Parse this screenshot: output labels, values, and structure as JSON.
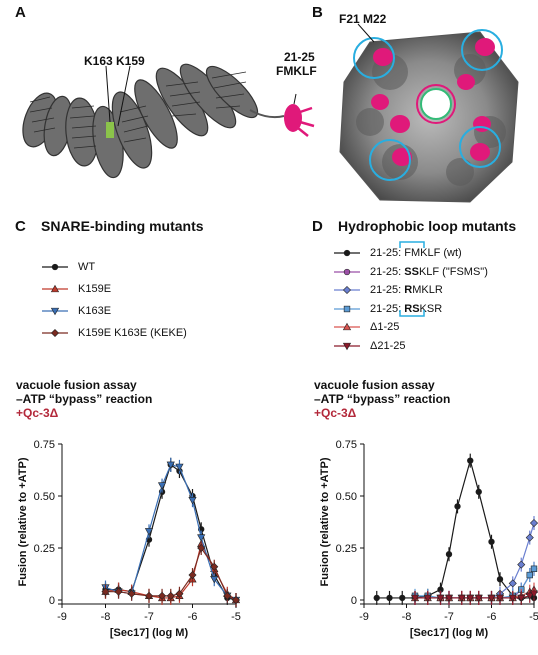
{
  "panels": {
    "a": {
      "letter": "A",
      "labels": {
        "k163": "K163",
        "k159": "K159",
        "loop_range": "21-25",
        "loop_seq": "FMKLF"
      }
    },
    "b": {
      "letter": "B",
      "labels": {
        "residues": "F21 M22"
      }
    },
    "c": {
      "letter": "C",
      "title": "SNARE-binding mutants",
      "assay_title_1": "vacuole fusion assay",
      "assay_title_2": "–ATP “bypass” reaction",
      "assay_title_3": "+Qc-3Δ"
    },
    "d": {
      "letter": "D",
      "title": "Hydrophobic loop mutants",
      "assay_title_1": "vacuole fusion assay",
      "assay_title_2": "–ATP “bypass” reaction",
      "assay_title_3": "+Qc-3Δ"
    }
  },
  "colors": {
    "wt": "#1a1a1a",
    "k159e": "#c0392b",
    "k163e": "#3a6fb5",
    "keke": "#7a2a20",
    "fsms": "#9b4fa6",
    "rmklr": "#6a7fd0",
    "rsksr": "#5b9bd5",
    "d1_25": "#d9534f",
    "d21_25": "#8b1a2a",
    "magenta": "#e0197a",
    "cyan": "#29aee0"
  },
  "chart_data": [
    {
      "type": "line",
      "panel": "C",
      "title": "vacuole fusion assay –ATP “bypass” reaction +Qc-3Δ",
      "xlabel": "[Sec17] (log M)",
      "ylabel": "Fusion (relative to +ATP)",
      "xlim": [
        -9,
        -5
      ],
      "ylim": [
        0,
        0.75
      ],
      "x_ticks": [
        "-9",
        "-8",
        "-7",
        "-6",
        "-5"
      ],
      "y_ticks": [
        "0",
        "0.25",
        "0.50",
        "0.75"
      ],
      "series": [
        {
          "name": "WT",
          "color": "#1a1a1a",
          "marker": "circle",
          "x": [
            -8.0,
            -7.7,
            -7.4,
            -7.0,
            -6.7,
            -6.5,
            -6.3,
            -6.0,
            -5.8,
            -5.5,
            -5.2,
            -5.0
          ],
          "y": [
            0.05,
            0.05,
            0.04,
            0.29,
            0.52,
            0.65,
            0.62,
            0.5,
            0.34,
            0.12,
            0.01,
            0.0
          ]
        },
        {
          "name": "K159E",
          "color": "#c0392b",
          "marker": "triangle-up",
          "x": [
            -8.0,
            -7.7,
            -7.4,
            -7.0,
            -6.7,
            -6.5,
            -6.3,
            -6.0,
            -5.8,
            -5.5,
            -5.2,
            -5.0
          ],
          "y": [
            0.04,
            0.05,
            0.04,
            0.02,
            0.01,
            0.01,
            0.02,
            0.1,
            0.27,
            0.15,
            0.03,
            0.0
          ]
        },
        {
          "name": "K163E",
          "color": "#3a6fb5",
          "marker": "triangle-down",
          "x": [
            -8.0,
            -7.7,
            -7.4,
            -7.0,
            -6.7,
            -6.5,
            -6.3,
            -6.0,
            -5.8,
            -5.5,
            -5.2,
            -5.0
          ],
          "y": [
            0.06,
            0.04,
            0.03,
            0.33,
            0.55,
            0.65,
            0.64,
            0.48,
            0.3,
            0.1,
            0.02,
            0.0
          ]
        },
        {
          "name": "K159E K163E (KEKE)",
          "color": "#7a2a20",
          "marker": "diamond",
          "x": [
            -8.0,
            -7.7,
            -7.4,
            -7.0,
            -6.7,
            -6.5,
            -6.3,
            -6.0,
            -5.8,
            -5.5,
            -5.2,
            -5.0
          ],
          "y": [
            0.04,
            0.04,
            0.03,
            0.02,
            0.02,
            0.02,
            0.03,
            0.12,
            0.25,
            0.16,
            0.02,
            0.0
          ]
        }
      ]
    },
    {
      "type": "line",
      "panel": "D",
      "title": "vacuole fusion assay –ATP “bypass” reaction +Qc-3Δ",
      "xlabel": "[Sec17] (log M)",
      "ylabel": "Fusion (relative to +ATP)",
      "xlim": [
        -9,
        -5
      ],
      "ylim": [
        0,
        0.75
      ],
      "x_ticks": [
        "-9",
        "-8",
        "-7",
        "-6",
        "-5"
      ],
      "y_ticks": [
        "0",
        "0.25",
        "0.50",
        "0.75"
      ],
      "series": [
        {
          "name": "21-25: FMKLF (wt)",
          "legend_plain": "21-25: ",
          "legend_bold": "",
          "legend_rest": "FMKLF (wt)",
          "color": "#1a1a1a",
          "marker": "circle",
          "x": [
            -8.7,
            -8.4,
            -8.1,
            -7.8,
            -7.5,
            -7.2,
            -7.0,
            -6.8,
            -6.5,
            -6.3,
            -6.0,
            -5.8,
            -5.5,
            -5.3,
            -5.0
          ],
          "y": [
            0.01,
            0.01,
            0.01,
            0.01,
            0.02,
            0.05,
            0.22,
            0.45,
            0.67,
            0.52,
            0.28,
            0.1,
            0.02,
            0.01,
            0.01
          ]
        },
        {
          "name": "21-25: SSKLF (\"FSMS\")",
          "legend_plain": "21-25: ",
          "legend_bold": "SS",
          "legend_rest": "KLF (\"FSMS\")",
          "color": "#9b4fa6",
          "marker": "circle",
          "x": [
            -7.8,
            -7.5,
            -7.2,
            -7.0,
            -6.7,
            -6.5,
            -6.3,
            -6.0,
            -5.8,
            -5.5,
            -5.3,
            -5.1,
            -5.0
          ],
          "y": [
            0.01,
            0.01,
            0.01,
            0.01,
            0.01,
            0.01,
            0.01,
            0.01,
            0.01,
            0.01,
            0.05,
            0.12,
            0.15
          ]
        },
        {
          "name": "21-25: RMKLR",
          "legend_plain": "21-25: ",
          "legend_bold": "R",
          "legend_rest": "MKLR",
          "color": "#6a7fd0",
          "marker": "diamond",
          "x": [
            -7.8,
            -7.5,
            -7.2,
            -7.0,
            -6.7,
            -6.5,
            -6.3,
            -6.0,
            -5.8,
            -5.5,
            -5.3,
            -5.1,
            -5.0
          ],
          "y": [
            0.01,
            0.01,
            0.01,
            0.01,
            0.01,
            0.01,
            0.01,
            0.01,
            0.03,
            0.08,
            0.17,
            0.3,
            0.37
          ]
        },
        {
          "name": "21-25: RSKSR",
          "legend_plain": "21-25: ",
          "legend_bold": "RS",
          "legend_rest": "KSR",
          "color": "#5b9bd5",
          "marker": "square",
          "x": [
            -7.8,
            -7.5,
            -7.2,
            -7.0,
            -6.7,
            -6.5,
            -6.3,
            -6.0,
            -5.8,
            -5.5,
            -5.3,
            -5.1,
            -5.0
          ],
          "y": [
            0.02,
            0.02,
            0.01,
            0.01,
            0.01,
            0.01,
            0.01,
            0.01,
            0.01,
            0.02,
            0.05,
            0.12,
            0.15
          ]
        },
        {
          "name": "Δ1-25",
          "legend_plain": "Δ1-25",
          "legend_bold": "",
          "legend_rest": "",
          "color": "#d9534f",
          "marker": "triangle-up",
          "x": [
            -7.8,
            -7.5,
            -7.2,
            -7.0,
            -6.7,
            -6.5,
            -6.3,
            -6.0,
            -5.8,
            -5.5,
            -5.3,
            -5.1,
            -5.0
          ],
          "y": [
            0.01,
            0.01,
            0.01,
            0.01,
            0.01,
            0.01,
            0.01,
            0.01,
            0.01,
            0.01,
            0.02,
            0.04,
            0.05
          ]
        },
        {
          "name": "Δ21-25",
          "legend_plain": "Δ21-25",
          "legend_bold": "",
          "legend_rest": "",
          "color": "#8b1a2a",
          "marker": "triangle-down",
          "x": [
            -7.8,
            -7.5,
            -7.2,
            -7.0,
            -6.7,
            -6.5,
            -6.3,
            -6.0,
            -5.8,
            -5.5,
            -5.3,
            -5.1,
            -5.0
          ],
          "y": [
            0.01,
            0.01,
            0.01,
            0.01,
            0.01,
            0.01,
            0.01,
            0.01,
            0.01,
            0.01,
            0.01,
            0.02,
            0.03
          ]
        }
      ]
    }
  ]
}
